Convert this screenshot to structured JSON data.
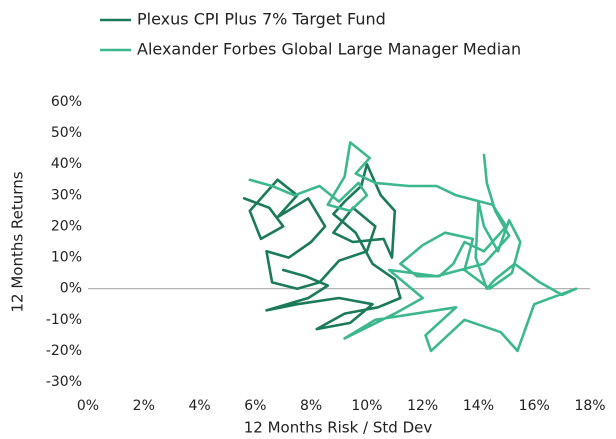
{
  "chart_data": {
    "type": "line",
    "x_label": "12 Months Risk / Std Dev",
    "y_label": "12 Months Returns",
    "xlim": [
      0,
      18
    ],
    "ylim": [
      -30,
      60
    ],
    "xticks": [
      {
        "value": 0,
        "label": "0%"
      },
      {
        "value": 2,
        "label": "2%"
      },
      {
        "value": 4,
        "label": "4%"
      },
      {
        "value": 6,
        "label": "6%"
      },
      {
        "value": 8,
        "label": "8%"
      },
      {
        "value": 10,
        "label": "10%"
      },
      {
        "value": 12,
        "label": "12%"
      },
      {
        "value": 14,
        "label": "14%"
      },
      {
        "value": 16,
        "label": "16%"
      },
      {
        "value": 18,
        "label": "18%"
      }
    ],
    "yticks": [
      {
        "value": -30,
        "label": "-30%"
      },
      {
        "value": -20,
        "label": "-20%"
      },
      {
        "value": -10,
        "label": "-10%"
      },
      {
        "value": 0,
        "label": "0%"
      },
      {
        "value": 10,
        "label": "10%"
      },
      {
        "value": 20,
        "label": "20%"
      },
      {
        "value": 30,
        "label": "30%"
      },
      {
        "value": 40,
        "label": "40%"
      },
      {
        "value": 50,
        "label": "50%"
      },
      {
        "value": 60,
        "label": "60%"
      }
    ],
    "series": [
      {
        "name": "Plexus CPI Plus 7% Target Fund",
        "color": "#1b7a58",
        "x": [
          5.6,
          6.5,
          7.0,
          6.2,
          5.8,
          6.8,
          7.5,
          6.8,
          7.9,
          8.5,
          8.0,
          7.2,
          6.4,
          6.6,
          7.5,
          8.3,
          9.0,
          10.0,
          10.3,
          9.5,
          8.8,
          9.5,
          10.6,
          10.9,
          11.0,
          10.5,
          10.0,
          9.8,
          9.2,
          8.8,
          9.6,
          10.2,
          11.0,
          11.2,
          10.4,
          9.2,
          8.2,
          9.4,
          10.2,
          9.0,
          7.5,
          6.4,
          7.9,
          8.6,
          7.8,
          7.0
        ],
        "values": [
          29,
          26,
          20,
          16,
          25,
          35,
          30,
          23,
          29,
          20,
          15,
          10,
          12,
          2,
          0,
          2,
          9,
          12,
          20,
          26,
          18,
          15,
          16,
          10,
          25,
          30,
          40,
          33,
          28,
          24,
          18,
          8,
          3,
          -3,
          -6,
          -8,
          -13,
          -11,
          -5,
          -3,
          -5,
          -7,
          -3,
          1,
          4,
          6
        ]
      },
      {
        "name": "Alexander Forbes Global Large Manager Median",
        "color": "#3db88e",
        "x": [
          5.8,
          6.6,
          7.4,
          8.3,
          9.0,
          9.7,
          10.0,
          9.4,
          8.6,
          9.2,
          9.4,
          10.1,
          9.6,
          10.3,
          11.5,
          12.5,
          13.2,
          14.5,
          15.0,
          14.2,
          13.5,
          13.1,
          12.6,
          11.8,
          11.2,
          12.0,
          12.8,
          13.8,
          13.5,
          14.4,
          15.2,
          15.5,
          15.1,
          14.7,
          14.2,
          14.0,
          13.9,
          14.3,
          14.6,
          15.3,
          16.2,
          17.0,
          17.5,
          16.0,
          15.4,
          14.8,
          13.5,
          12.3,
          12.1,
          13.2,
          10.3,
          9.2,
          11.0,
          12.0,
          10.8,
          12.5,
          14.2,
          15.1,
          14.6,
          14.3,
          14.2
        ],
        "values": [
          35,
          33,
          30,
          33,
          28,
          34,
          30,
          25,
          27,
          36,
          47,
          42,
          37,
          34,
          33,
          33,
          30,
          27,
          20,
          12,
          15,
          8,
          4,
          4,
          8,
          14,
          18,
          16,
          6,
          0,
          5,
          15,
          22,
          12,
          20,
          28,
          10,
          0,
          3,
          8,
          2,
          -2,
          0,
          -5,
          -20,
          -14,
          -10,
          -20,
          -15,
          -6,
          -10,
          -16,
          -8,
          -3,
          6,
          4,
          8,
          17,
          25,
          34,
          43
        ]
      }
    ]
  }
}
